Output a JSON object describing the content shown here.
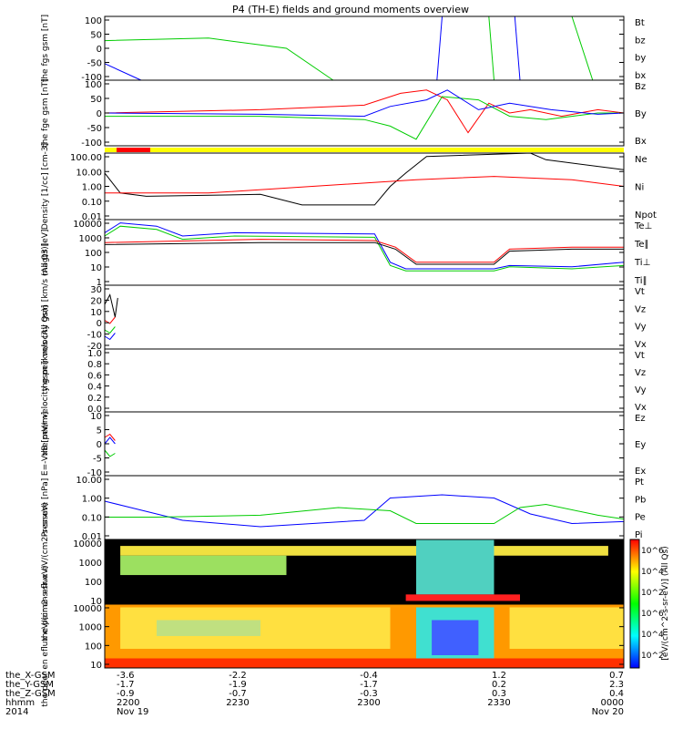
{
  "title": "P4 (TH-E) fields and ground moments overview",
  "chart_data": {
    "type": "line",
    "title": "P4 (TH-E) fields and ground moments overview",
    "panels": [
      {
        "ylabel": "the fgs gsm [nT]",
        "yticks": [
          "100",
          "50",
          "0",
          "-50",
          "-100"
        ],
        "legend": [
          {
            "name": "Bt",
            "color": "#000000"
          },
          {
            "name": "bz",
            "color": "#ff0000"
          },
          {
            "name": "by",
            "color": "#00cc00"
          },
          {
            "name": "bx",
            "color": "#0000ff"
          }
        ]
      },
      {
        "ylabel": "the fge gsm [nT]",
        "yticks": [
          "100",
          "50",
          "0",
          "-50",
          "-100"
        ],
        "legend": [
          {
            "name": "Bz",
            "color": "#ff0000"
          },
          {
            "name": "By",
            "color": "#00cc00"
          },
          {
            "name": "Bx",
            "color": "#0000ff"
          }
        ]
      },
      {
        "ylabel": "Density [1/cc] [cm-3]",
        "yticks": [
          "100.00",
          "10.00",
          "1.00",
          "0.10",
          "0.01"
        ],
        "legend": [
          {
            "name": "Ne",
            "color": "#ff0000"
          },
          {
            "name": "Ni",
            "color": "#000000"
          },
          {
            "name": "Npot",
            "color": "#0000ff"
          }
        ]
      },
      {
        "ylabel": "magt3 [eV]",
        "yticks": [
          "10000",
          "1000",
          "100",
          "10",
          "1"
        ],
        "legend": [
          {
            "name": "Te⊥",
            "color": "#ff0000"
          },
          {
            "name": "Te∥",
            "color": "#000000"
          },
          {
            "name": "Ti⊥",
            "color": "#0000ff"
          },
          {
            "name": "Ti∥",
            "color": "#00cc00"
          }
        ]
      },
      {
        "ylabel": "the peir velocity gsm [km/s (All Qs)]",
        "yticks": [
          "30",
          "20",
          "10",
          "0",
          "-10",
          "-20"
        ],
        "legend": [
          {
            "name": "Vt",
            "color": "#000000"
          },
          {
            "name": "Vz",
            "color": "#ff0000"
          },
          {
            "name": "Vy",
            "color": "#00cc00"
          },
          {
            "name": "Vx",
            "color": "#0000ff"
          }
        ]
      },
      {
        "ylabel": "the peer velocity gsm [km/s (All Qs)]",
        "yticks": [
          "1.0",
          "0.8",
          "0.6",
          "0.4",
          "0.2",
          "0.0"
        ],
        "legend": [
          {
            "name": "Vt",
            "color": "#000000"
          },
          {
            "name": "Vz",
            "color": "#ff0000"
          },
          {
            "name": "Vy",
            "color": "#00cc00"
          },
          {
            "name": "Vx",
            "color": "#0000ff"
          }
        ]
      },
      {
        "ylabel": "E=-VxB [mV/m]",
        "yticks": [
          "10",
          "5",
          "0",
          "-5",
          "-10"
        ],
        "legend": [
          {
            "name": "Ez",
            "color": "#ff0000"
          },
          {
            "name": "Ey",
            "color": "#00cc00"
          },
          {
            "name": "Ex",
            "color": "#0000ff"
          }
        ]
      },
      {
        "ylabel": "Pressure [nPa]",
        "yticks": [
          "10.00",
          "1.00",
          "0.10",
          "0.01"
        ],
        "legend": [
          {
            "name": "Pt",
            "color": "#000000"
          },
          {
            "name": "Pb",
            "color": "#ff0000"
          },
          {
            "name": "Pe",
            "color": "#00cc00"
          },
          {
            "name": "Pi",
            "color": "#0000ff"
          }
        ]
      },
      {
        "ylabel": "the peir en eflux eV/(cm2-s-sr-eV)",
        "yticks": [
          "10000",
          "1000",
          "100",
          "10"
        ],
        "legend": []
      },
      {
        "ylabel": "the peer en eflux eV/(cm2-s-sr-eV)",
        "yticks": [
          "10000",
          "1000",
          "100",
          "10"
        ],
        "legend": []
      }
    ],
    "colorbar": {
      "label": "[eV/(cm^2-s-sr-eV)] (All Qs)",
      "ticks_upper": [
        "10^6",
        "10^4",
        "10^2"
      ],
      "ticks_lower": [
        "10^6",
        "10^4",
        "10^2"
      ]
    },
    "xaxis": {
      "rows": [
        {
          "label": "the_X-GSM",
          "values": [
            "-3.6",
            "-2.2",
            "-0.4",
            "1.2",
            "0.7"
          ]
        },
        {
          "label": "the_Y-GSM",
          "values": [
            "-1.7",
            "-1.9",
            "-1.7",
            "0.2",
            "2.3"
          ]
        },
        {
          "label": "the_Z-GSM",
          "values": [
            "-0.9",
            "-0.7",
            "-0.3",
            "0.3",
            "0.4"
          ]
        },
        {
          "label": "hhmm",
          "values": [
            "2200",
            "2230",
            "2300",
            "2330",
            "0000"
          ]
        },
        {
          "label": "2014",
          "values": [
            "Nov 19",
            "",
            "",
            "",
            "Nov 20"
          ]
        }
      ]
    }
  }
}
